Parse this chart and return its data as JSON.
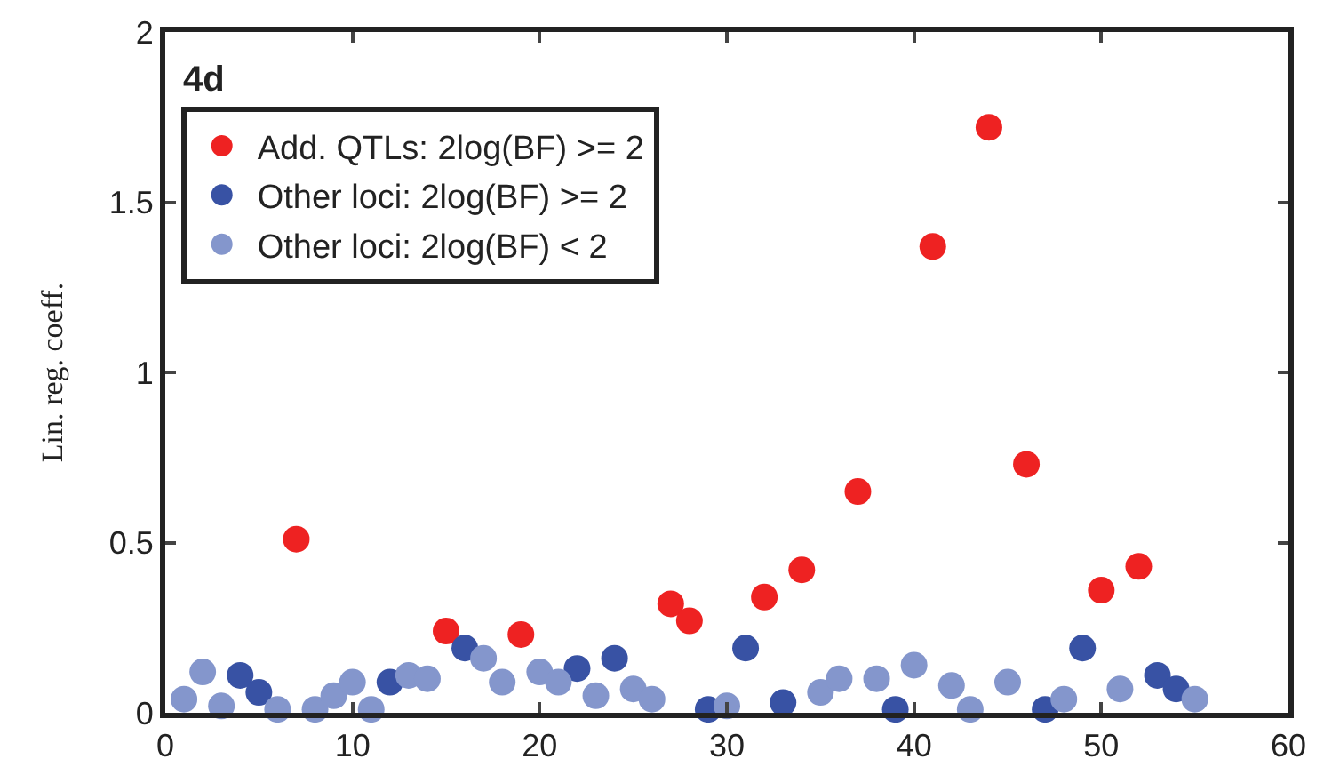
{
  "chart_data": {
    "type": "scatter",
    "ylabel": "Lin. reg. coeff.",
    "annotations": [
      "4d"
    ],
    "xlim": [
      0,
      60
    ],
    "xticks": [
      0,
      10,
      20,
      30,
      40,
      50,
      60
    ],
    "ylim": [
      0,
      2
    ],
    "yticks": [
      0,
      0.5,
      1,
      1.5,
      2
    ],
    "grid": false,
    "legend": "top left",
    "marker": "circle",
    "series": [
      {
        "name": "Add. QTLs: 2log(BF) >= 2",
        "color": "#ee2222",
        "x": [
          7,
          15,
          19,
          27,
          28,
          32,
          34,
          37,
          41,
          44,
          46,
          50,
          52
        ],
        "values": [
          0.51,
          0.24,
          0.23,
          0.32,
          0.27,
          0.34,
          0.42,
          0.65,
          1.37,
          1.72,
          0.73,
          0.36,
          0.43
        ]
      },
      {
        "name": "Other loci: 2log(BF) >= 2",
        "color": "#3852a4",
        "x": [
          4,
          5,
          12,
          16,
          22,
          24,
          29,
          31,
          33,
          39,
          47,
          49,
          53,
          54
        ],
        "values": [
          0.11,
          0.06,
          0.09,
          0.19,
          0.13,
          0.16,
          0.01,
          0.19,
          0.03,
          0.01,
          0.01,
          0.19,
          0.11,
          0.07
        ]
      },
      {
        "name": "Other loci: 2log(BF) < 2",
        "color": "#8496cc",
        "x": [
          1,
          2,
          3,
          6,
          8,
          9,
          10,
          11,
          13,
          14,
          17,
          18,
          20,
          21,
          23,
          25,
          26,
          30,
          35,
          36,
          38,
          40,
          42,
          43,
          45,
          48,
          51,
          55
        ],
        "values": [
          0.04,
          0.12,
          0.02,
          0.01,
          0.01,
          0.05,
          0.09,
          0.01,
          0.11,
          0.1,
          0.16,
          0.09,
          0.12,
          0.09,
          0.05,
          0.07,
          0.04,
          0.02,
          0.06,
          0.1,
          0.1,
          0.14,
          0.08,
          0.01,
          0.09,
          0.04,
          0.07,
          0.04
        ]
      }
    ]
  }
}
